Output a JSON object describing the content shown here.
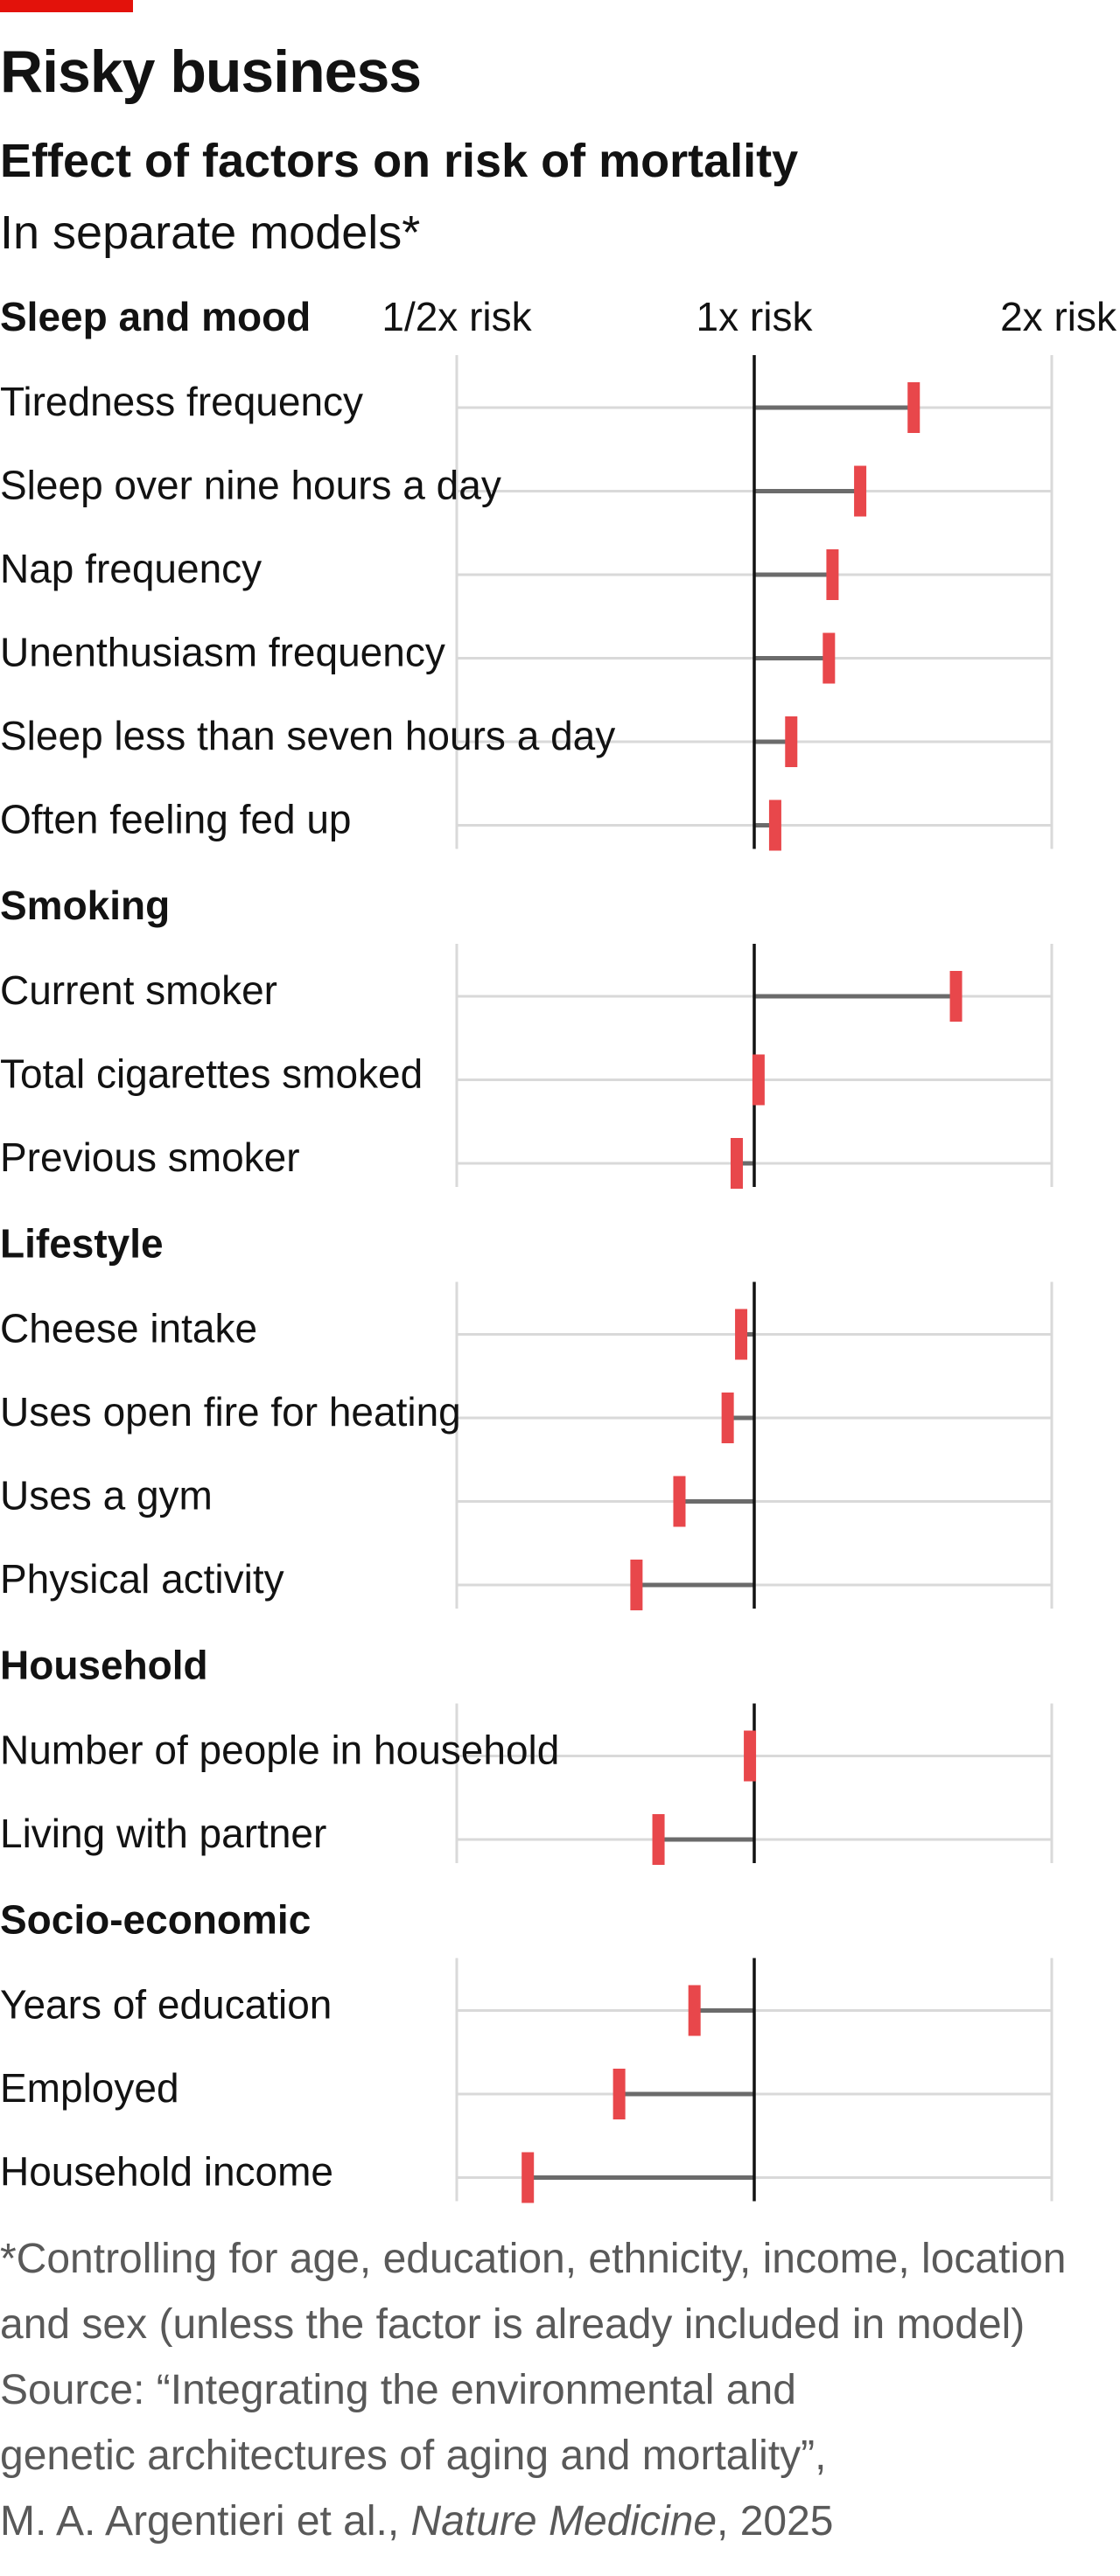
{
  "title": "Risky business",
  "subtitle": "Effect of factors on risk of mortality",
  "subsubtitle": "In separate models*",
  "colors": {
    "brand_red": "#e3120b",
    "marker": "#e8474b",
    "range_line": "#6b6b6b",
    "baseline": "#121212",
    "gridline": "#d9d9d9",
    "footnote_text": "#595959"
  },
  "chart_data": {
    "type": "dot-range",
    "x_scale": "log2",
    "baseline": 1,
    "xlim": [
      0.5,
      2
    ],
    "ticks": [
      {
        "value": 0.5,
        "label": "1/2x risk"
      },
      {
        "value": 1,
        "label": "1x risk"
      },
      {
        "value": 2,
        "label": "2x risk"
      }
    ],
    "groups": [
      {
        "name": "Sleep and mood",
        "items": [
          {
            "label": "Tiredness frequency",
            "value": 1.45
          },
          {
            "label": "Sleep over nine hours a day",
            "value": 1.28
          },
          {
            "label": "Nap frequency",
            "value": 1.2
          },
          {
            "label": "Unenthusiasm frequency",
            "value": 1.19
          },
          {
            "label": "Sleep less than seven hours a day",
            "value": 1.09
          },
          {
            "label": "Often feeling fed up",
            "value": 1.05
          }
        ]
      },
      {
        "name": "Smoking",
        "items": [
          {
            "label": "Current smoker",
            "value": 1.6
          },
          {
            "label": "Total cigarettes smoked",
            "value": 1.01
          },
          {
            "label": "Previous smoker",
            "value": 0.96
          }
        ]
      },
      {
        "name": "Lifestyle",
        "items": [
          {
            "label": "Cheese intake",
            "value": 0.97
          },
          {
            "label": "Uses open fire for heating",
            "value": 0.94
          },
          {
            "label": "Uses a gym",
            "value": 0.84
          },
          {
            "label": "Physical activity",
            "value": 0.76
          }
        ]
      },
      {
        "name": "Household",
        "items": [
          {
            "label": "Number of people in household",
            "value": 0.99
          },
          {
            "label": "Living with partner",
            "value": 0.8
          }
        ]
      },
      {
        "name": "Socio-economic",
        "items": [
          {
            "label": "Years of education",
            "value": 0.87
          },
          {
            "label": "Employed",
            "value": 0.73
          },
          {
            "label": "Household income",
            "value": 0.59
          }
        ]
      }
    ]
  },
  "footnote": {
    "lines": [
      "*Controlling for age, education, ethnicity, income, location",
      "and sex (unless the factor is already included in model)",
      "Source: “Integrating the environmental and",
      "genetic architectures of aging and mortality”,"
    ],
    "citation_authors": "M. A. Argentieri et al., ",
    "citation_journal": "Nature Medicine",
    "citation_year": ", 2025"
  }
}
